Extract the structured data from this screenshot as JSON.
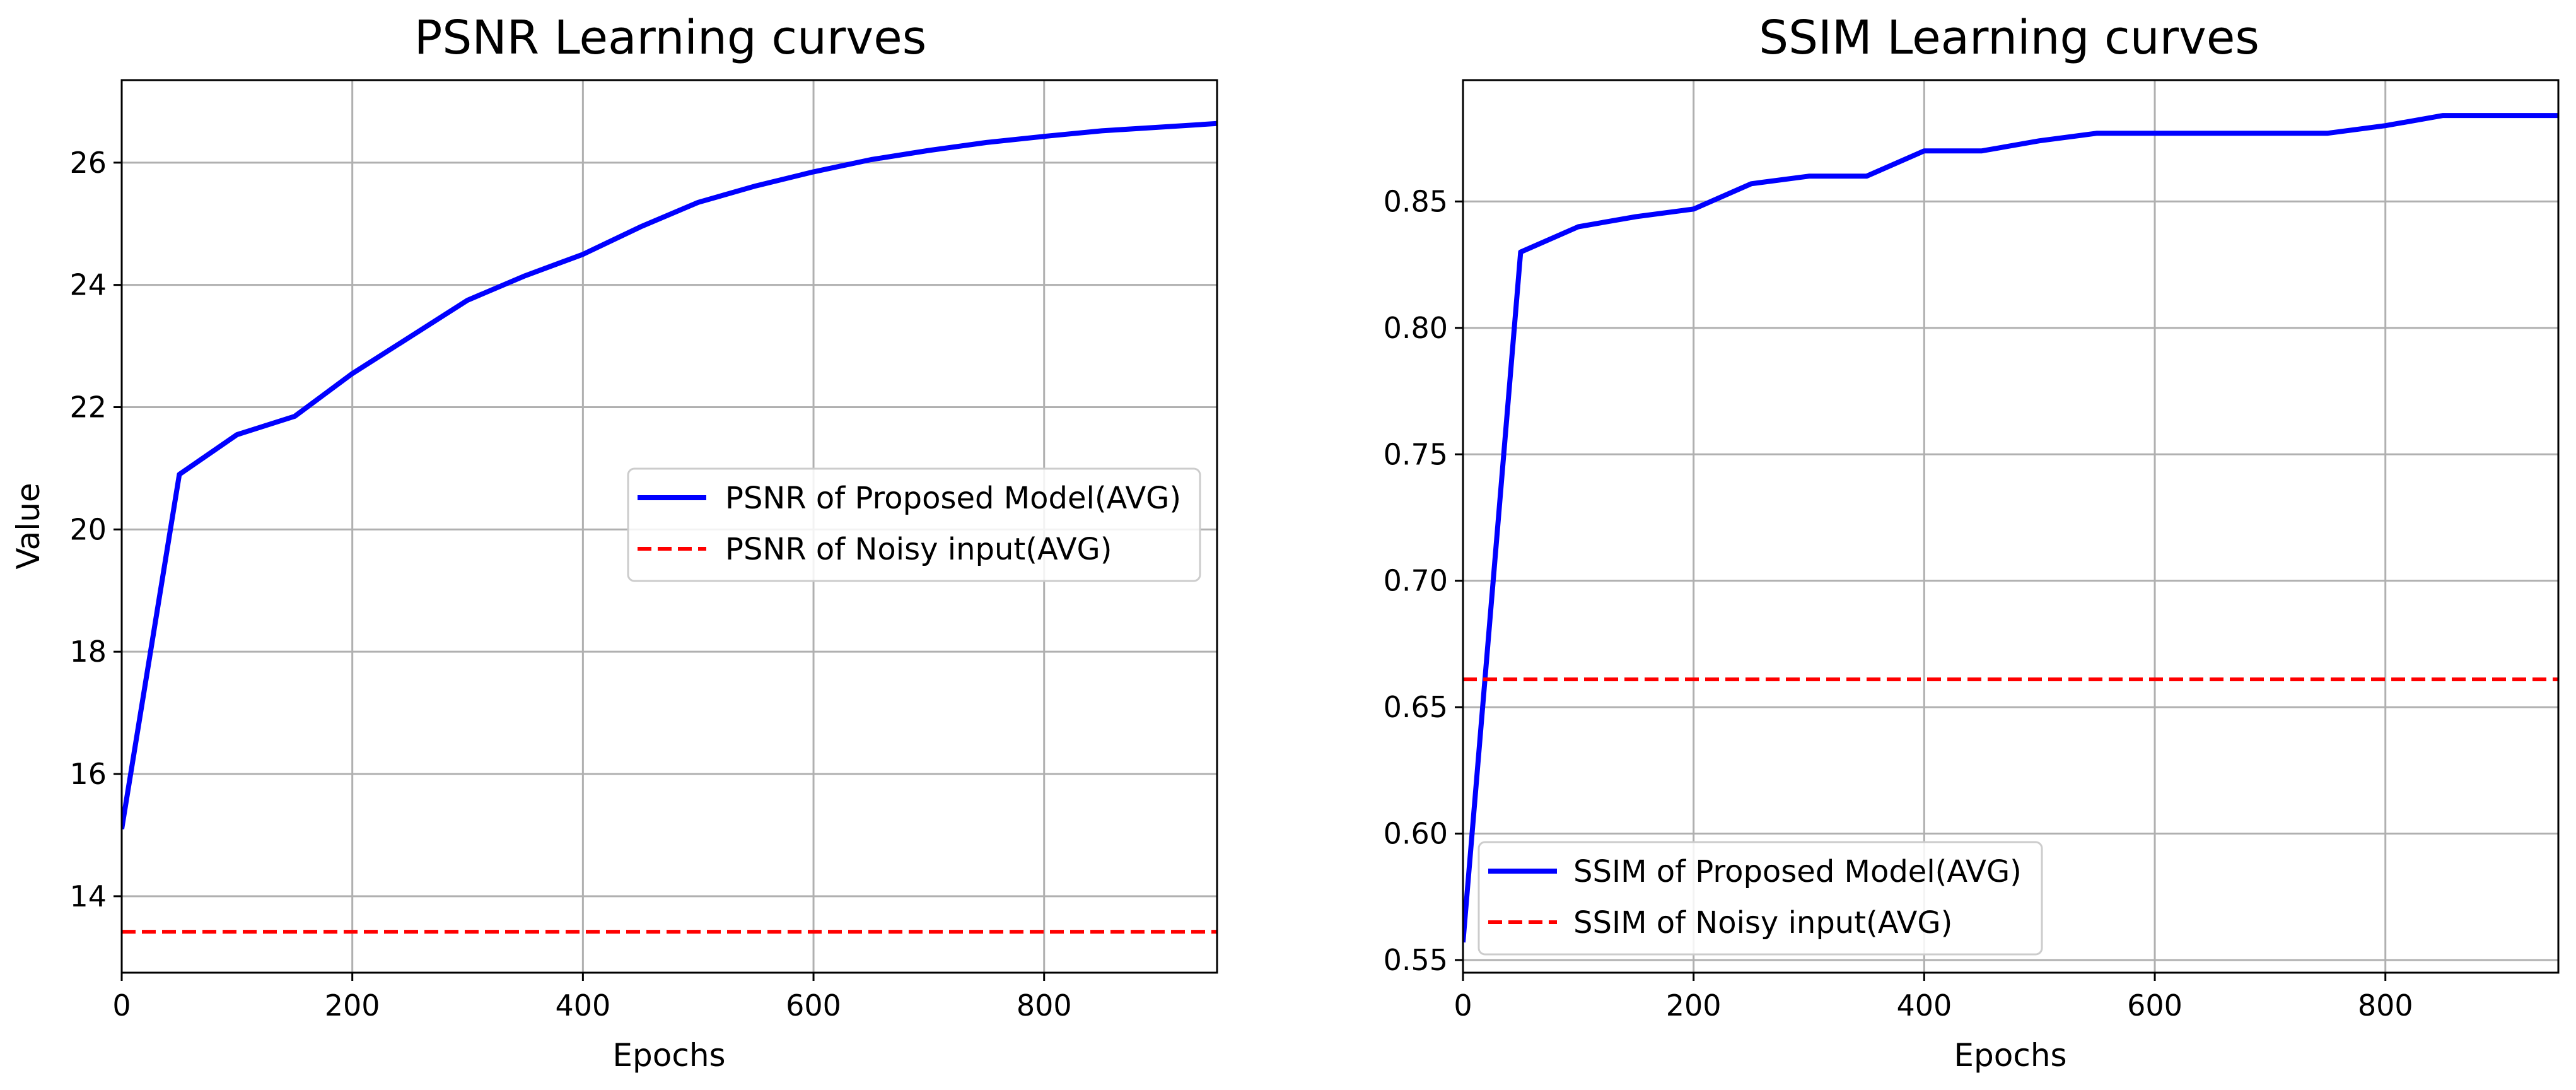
{
  "chart_data": [
    {
      "type": "line",
      "title": "PSNR Learning curves",
      "xlabel": "Epochs",
      "ylabel": "Value",
      "xlim": [
        0,
        950
      ],
      "ylim": [
        12.75,
        27.35
      ],
      "xticks": [
        0,
        200,
        400,
        600,
        800
      ],
      "yticks": [
        14,
        16,
        18,
        20,
        22,
        24,
        26
      ],
      "grid": true,
      "legend_position": "center-right",
      "series": [
        {
          "name": "PSNR of Proposed Model(AVG)",
          "style": "solid",
          "color": "#0000ff",
          "x": [
            0,
            50,
            100,
            150,
            200,
            250,
            300,
            350,
            400,
            450,
            500,
            550,
            600,
            650,
            700,
            750,
            800,
            850,
            900,
            950
          ],
          "values": [
            15.1,
            20.9,
            21.55,
            21.85,
            22.55,
            23.15,
            23.75,
            24.15,
            24.5,
            24.95,
            25.35,
            25.62,
            25.85,
            26.05,
            26.2,
            26.33,
            26.43,
            26.52,
            26.58,
            26.64
          ]
        },
        {
          "name": "PSNR of Noisy input(AVG)",
          "style": "dashed",
          "color": "#ff0000",
          "x": [
            0,
            950
          ],
          "values": [
            13.42,
            13.42
          ]
        }
      ]
    },
    {
      "type": "line",
      "title": "SSIM Learning curves",
      "xlabel": "Epochs",
      "ylabel": "",
      "xlim": [
        0,
        950
      ],
      "ylim": [
        0.545,
        0.898
      ],
      "xticks": [
        0,
        200,
        400,
        600,
        800
      ],
      "yticks": [
        0.55,
        0.6,
        0.65,
        0.7,
        0.75,
        0.8,
        0.85
      ],
      "ytick_labels": [
        "0.55",
        "0.60",
        "0.65",
        "0.70",
        "0.75",
        "0.80",
        "0.85"
      ],
      "grid": true,
      "legend_position": "lower-left",
      "series": [
        {
          "name": "SSIM of Proposed Model(AVG)",
          "style": "solid",
          "color": "#0000ff",
          "x": [
            0,
            50,
            100,
            150,
            200,
            250,
            300,
            350,
            400,
            450,
            500,
            550,
            600,
            650,
            700,
            750,
            800,
            850,
            900,
            950
          ],
          "values": [
            0.557,
            0.83,
            0.84,
            0.844,
            0.847,
            0.857,
            0.86,
            0.86,
            0.87,
            0.87,
            0.874,
            0.877,
            0.877,
            0.877,
            0.877,
            0.877,
            0.88,
            0.884,
            0.884,
            0.884
          ]
        },
        {
          "name": "SSIM of Noisy input(AVG)",
          "style": "dashed",
          "color": "#ff0000",
          "x": [
            0,
            950
          ],
          "values": [
            0.661,
            0.661
          ]
        }
      ]
    }
  ]
}
